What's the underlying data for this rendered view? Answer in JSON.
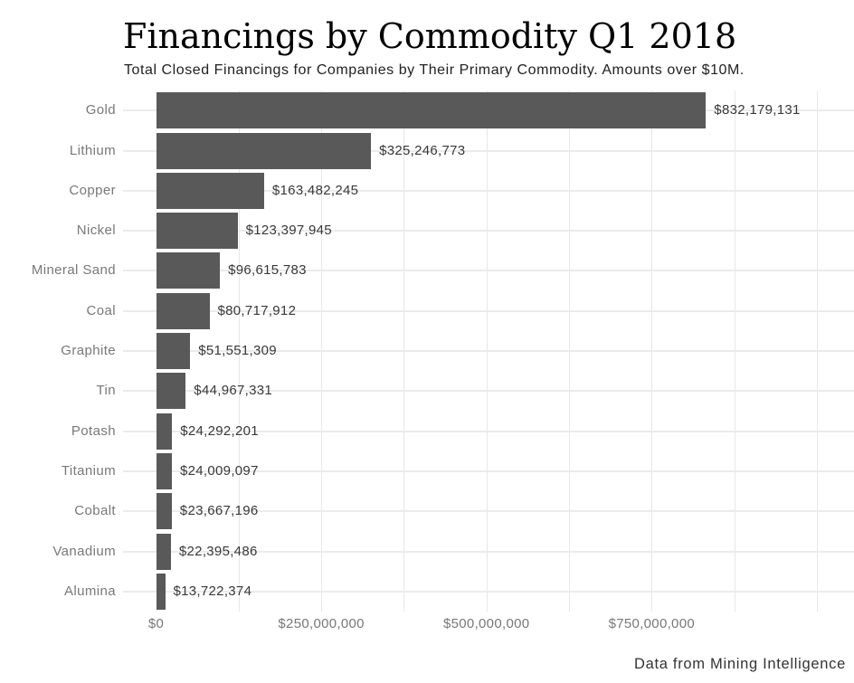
{
  "chart_data": {
    "type": "bar",
    "orientation": "horizontal",
    "title": "Financings by Commodity Q1 2018",
    "subtitle": "Total Closed Financings for Companies by Their Primary Commodity. Amounts over $10M.",
    "footer": "Data from Mining Intelligence",
    "categories": [
      "Gold",
      "Lithium",
      "Copper",
      "Nickel",
      "Mineral Sand",
      "Coal",
      "Graphite",
      "Tin",
      "Potash",
      "Titanium",
      "Cobalt",
      "Vanadium",
      "Alumina"
    ],
    "values": [
      832179131,
      325246773,
      163482245,
      123397945,
      96615783,
      80717912,
      51551309,
      44967331,
      24292201,
      24009097,
      23667196,
      22395486,
      13722374
    ],
    "value_labels": [
      "$832,179,131",
      "$325,246,773",
      "$163,482,245",
      "$123,397,945",
      "$96,615,783",
      "$80,717,912",
      "$51,551,309",
      "$44,967,331",
      "$24,292,201",
      "$24,009,097",
      "$23,667,196",
      "$22,395,486",
      "$13,722,374"
    ],
    "x_ticks": [
      {
        "value": 0,
        "label": "$0"
      },
      {
        "value": 250000000,
        "label": "$250,000,000"
      },
      {
        "value": 500000000,
        "label": "$500,000,000"
      },
      {
        "value": 750000000,
        "label": "$750,000,000"
      }
    ],
    "xlim": [
      0,
      1056000000
    ],
    "gridline_interval": 125000000,
    "gridline_max": 1000000000,
    "grid": true,
    "legend": false,
    "colors": {
      "bar": "#595959",
      "category_label": "#787878",
      "value_label": "#383838",
      "tick_label": "#787878",
      "h_gridline": "#ebebeb",
      "v_gridline": "#e8e8e8",
      "title": "#000000",
      "subtitle": "#212121",
      "footer": "#333333"
    }
  }
}
